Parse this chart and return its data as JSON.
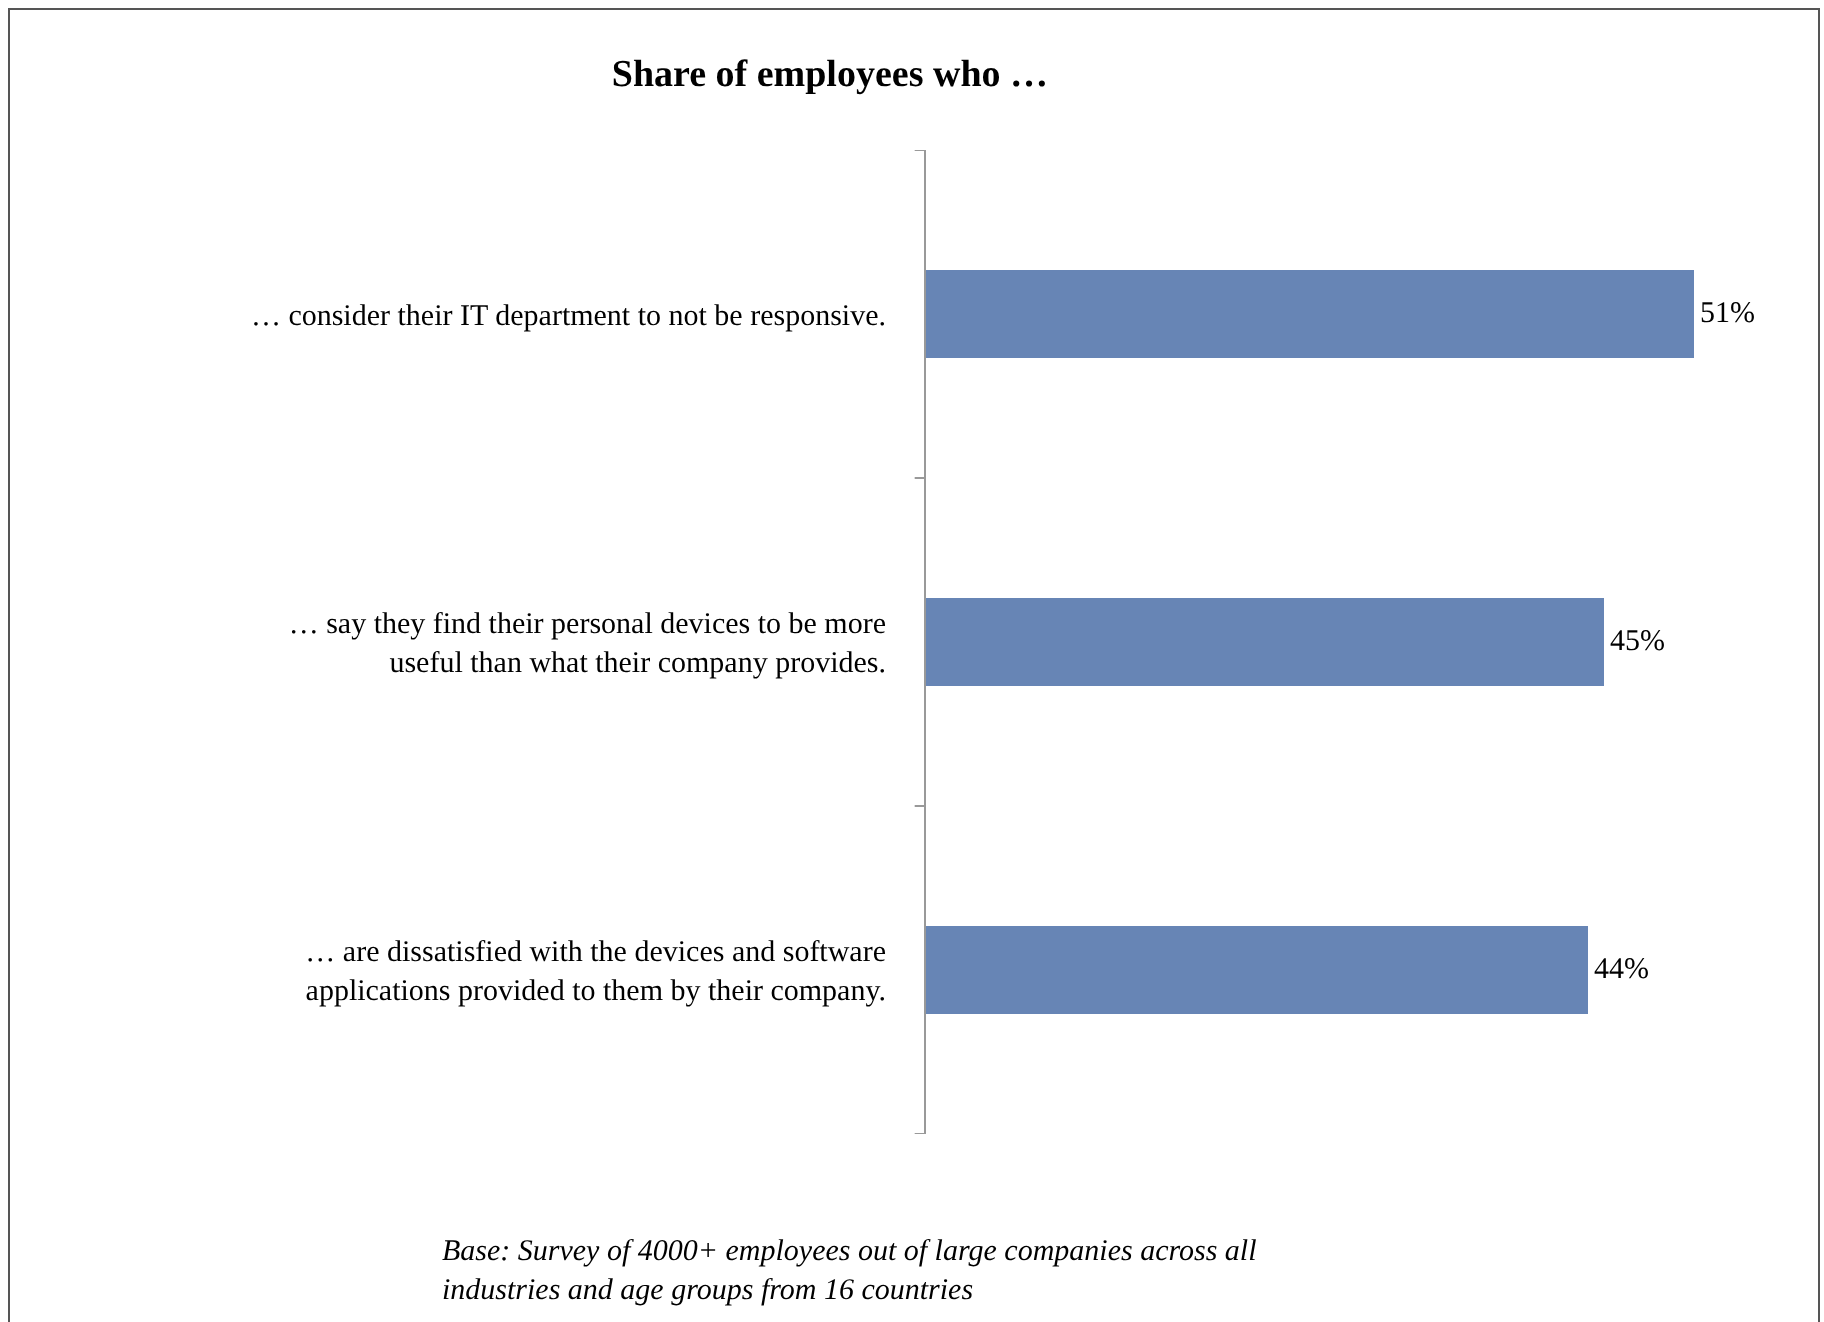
{
  "chart_data": {
    "type": "bar",
    "orientation": "horizontal",
    "title": "Share of employees who …",
    "categories": [
      "… consider their IT department to not be responsive.",
      "… say they find their personal devices to be more\nuseful than what their company provides.",
      "… are dissatisfied with the devices and software\napplications provided to them by their company."
    ],
    "values": [
      51,
      45,
      44
    ],
    "color": "#6785b5",
    "value_labels": [
      "51%",
      "45%",
      "44%"
    ],
    "tick_labels": "y",
    "annotations": [
      "Base: Survey of 4000+ employees out of large companies across all\nindustries and age groups from 16 countries"
    ]
  }
}
